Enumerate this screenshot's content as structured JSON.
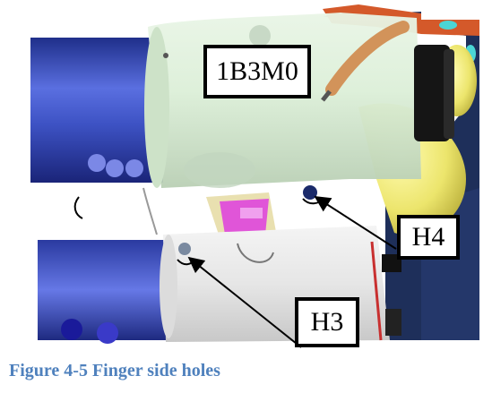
{
  "figure": {
    "labels": {
      "part": "1B3M0",
      "hole_upper": "H4",
      "hole_lower": "H3"
    },
    "caption": "Figure 4-5 Finger side holes",
    "colors": {
      "caption": "#4f81bd",
      "blue_cylinder": "#3a4fb8",
      "green_housing": "#d8ecd6",
      "yellow_part": "#e8e36a",
      "magenta_part": "#e055d8",
      "navy_background": "#1e2f5a"
    }
  }
}
